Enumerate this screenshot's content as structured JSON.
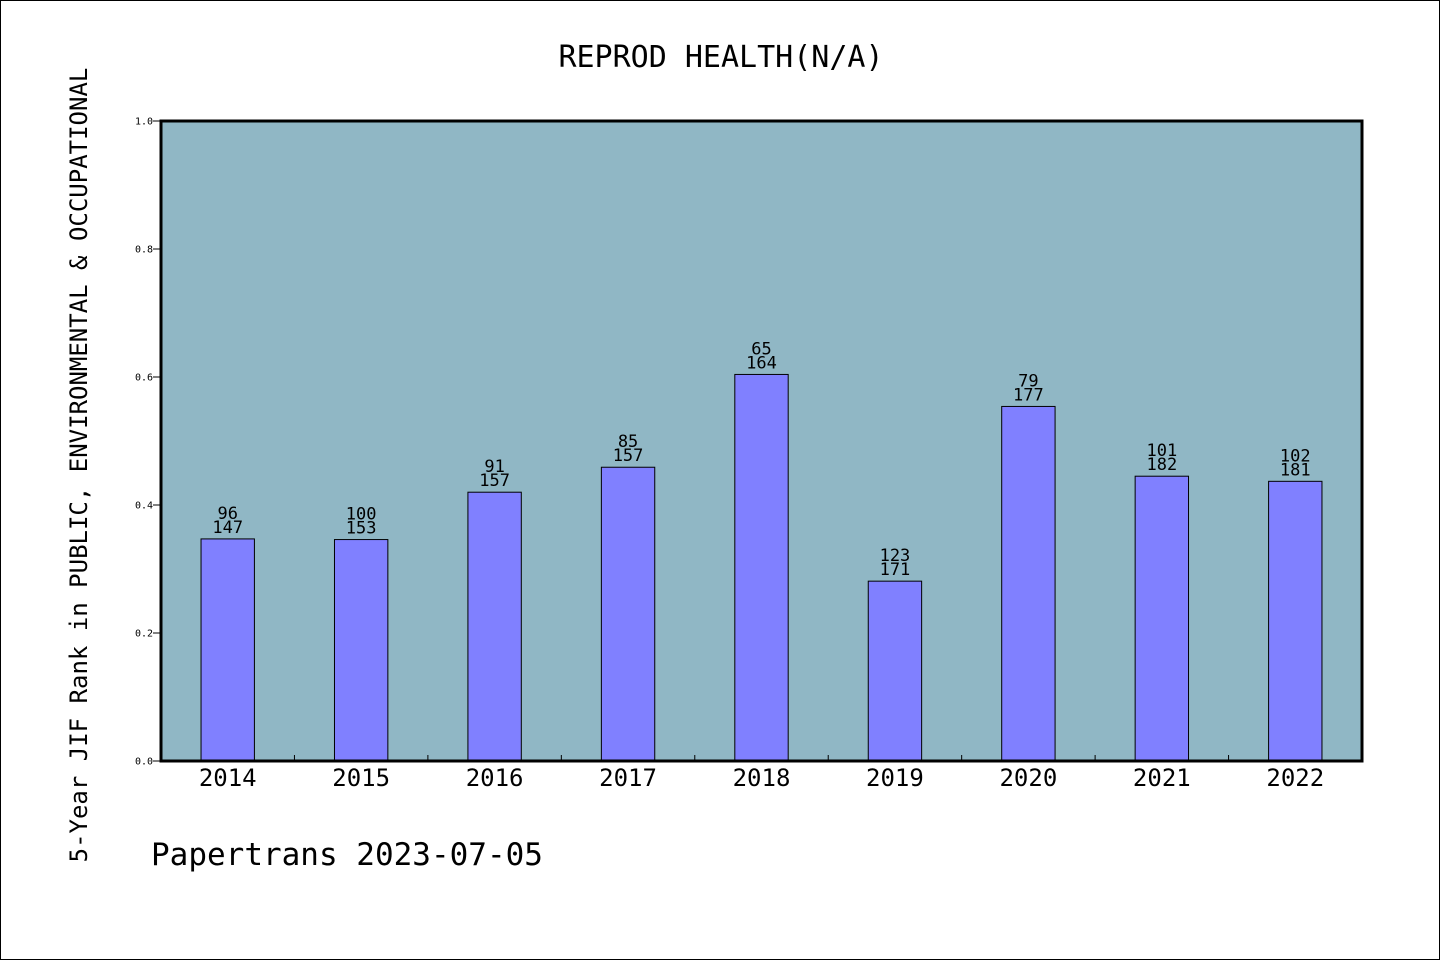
{
  "chart_data": {
    "type": "bar",
    "title": "REPROD HEALTH(N/A)",
    "xlabel": "",
    "ylabel": "5-Year JIF Rank in PUBLIC, ENVIRONMENTAL & OCCUPATIONAL",
    "ylim": [
      0,
      1.0
    ],
    "yticks": [
      "0.0",
      "0.2",
      "0.4",
      "0.6",
      "0.8",
      "1.0"
    ],
    "categories": [
      "2014",
      "2015",
      "2016",
      "2017",
      "2018",
      "2019",
      "2020",
      "2021",
      "2022"
    ],
    "values": [
      0.347,
      0.346,
      0.42,
      0.459,
      0.604,
      0.281,
      0.554,
      0.445,
      0.437
    ],
    "rank": [
      "96",
      "100",
      "91",
      "85",
      "65",
      "123",
      "79",
      "101",
      "102"
    ],
    "total": [
      "147",
      "153",
      "157",
      "157",
      "164",
      "171",
      "177",
      "182",
      "181"
    ],
    "grid": false,
    "colors": {
      "plot_background": "#90b7c5",
      "bar_fill": "#8080ff",
      "bar_stroke": "#000000"
    }
  },
  "footer": "Papertrans 2023-07-05"
}
